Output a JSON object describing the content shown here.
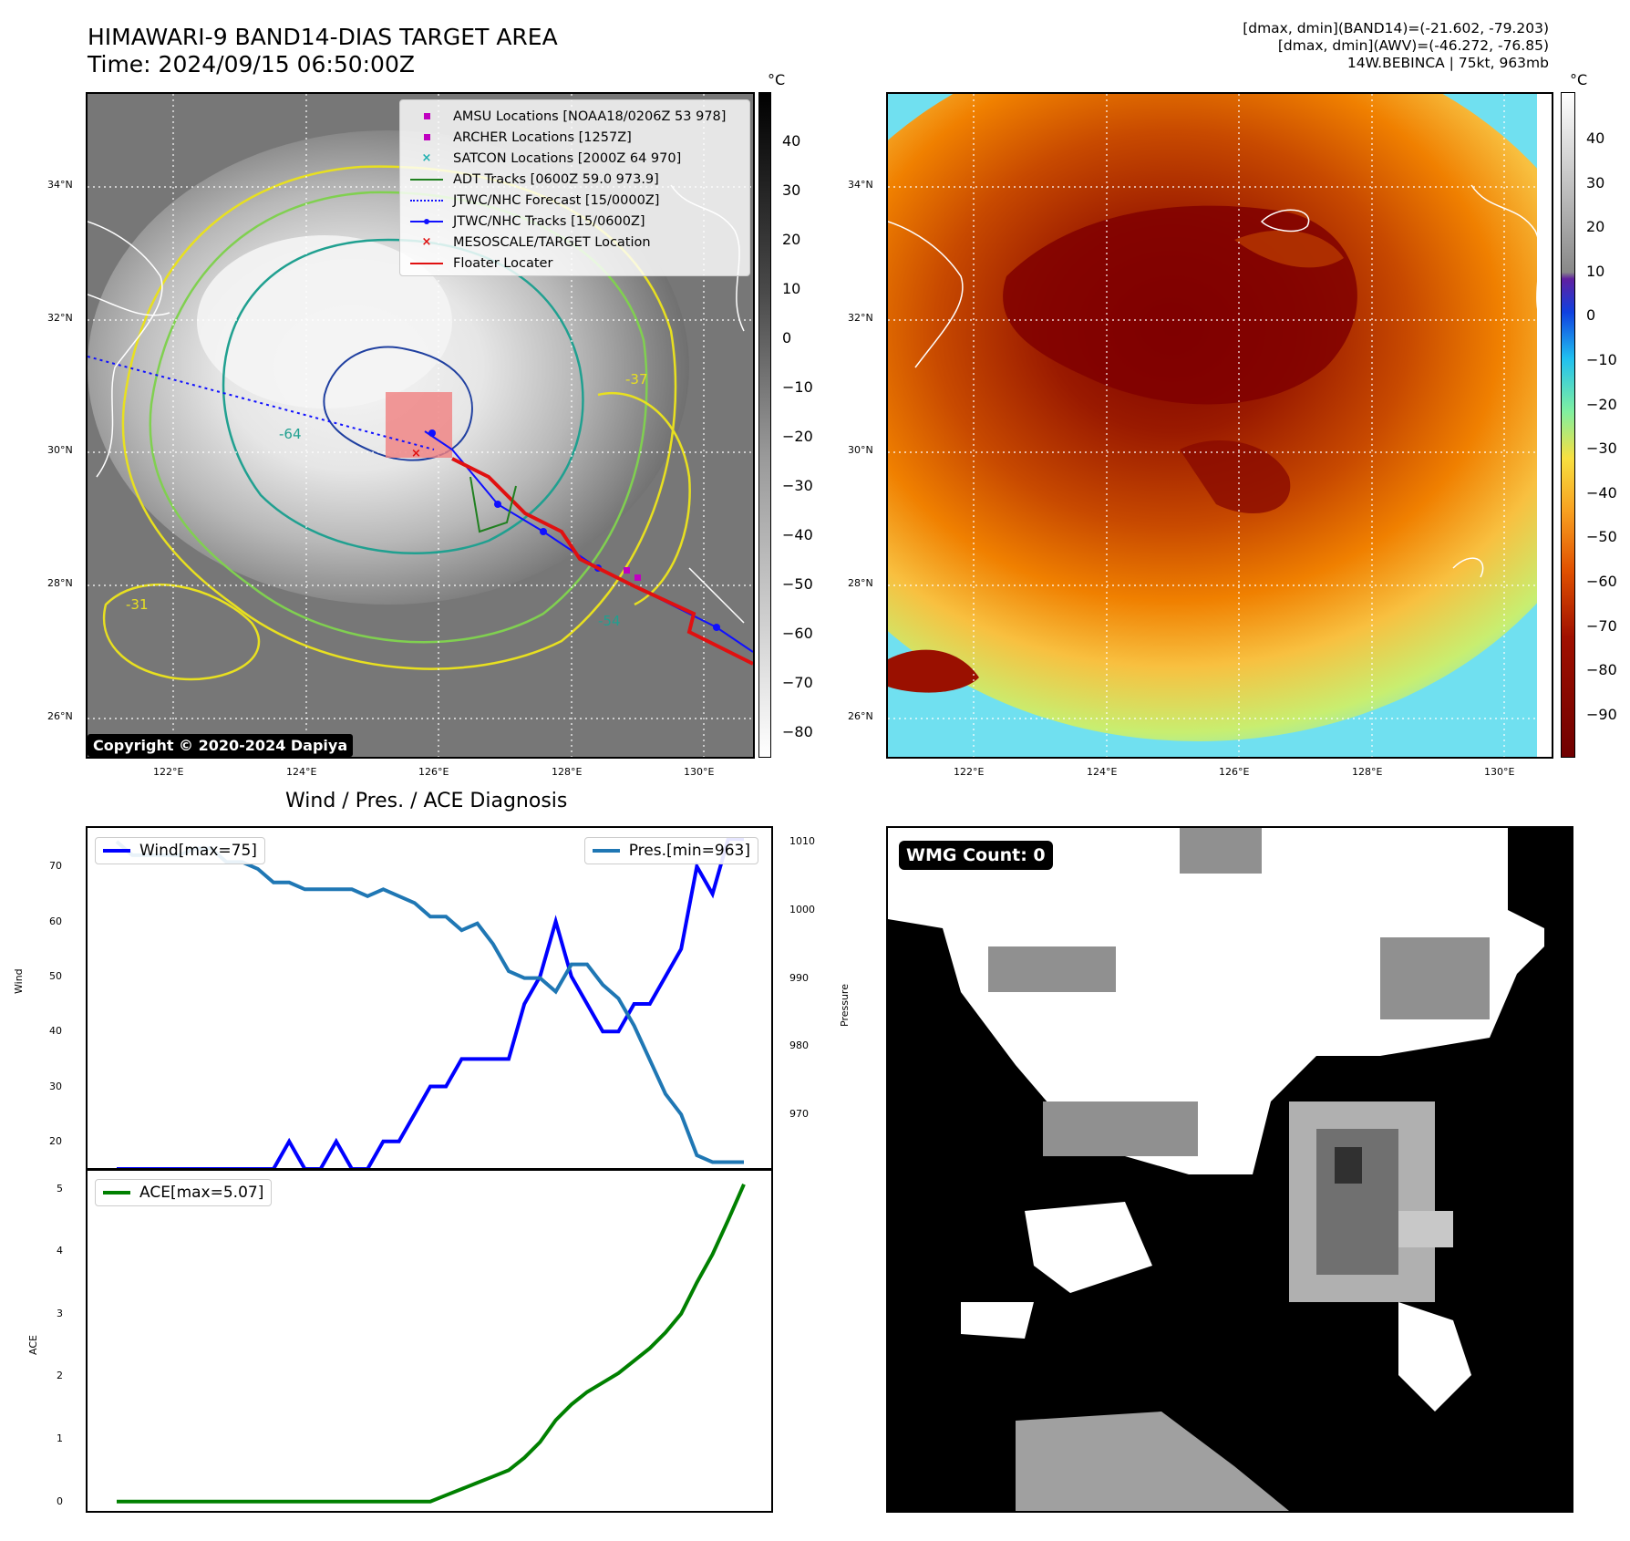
{
  "header": {
    "title": "HIMAWARI-9 BAND14-DIAS TARGET AREA",
    "time": "Time: 2024/09/15 06:50:00Z",
    "dmax_band14": "[dmax, dmin](BAND14)=(-21.602, -79.203)",
    "dmax_awv": "[dmax, dmin](AWV)=(-46.272, -76.85)",
    "storm": "14W.BEBINCA | 75kt, 963mb"
  },
  "map": {
    "lat_labels": [
      "34°N",
      "32°N",
      "30°N",
      "28°N",
      "26°N"
    ],
    "lon_labels": [
      "122°E",
      "124°E",
      "126°E",
      "128°E",
      "130°E"
    ],
    "copyright": "Copyright © 2020-2024 Dapiya",
    "contour_labels": [
      "-64",
      "-54",
      "-37",
      "-31"
    ],
    "legend": [
      {
        "label": "AMSU Locations [NOAA18/0206Z 53 978]",
        "color": "#c000c0"
      },
      {
        "label": "ARCHER Locations [1257Z]",
        "color": "#c000c0"
      },
      {
        "label": "SATCON Locations [2000Z 64 970]",
        "color": "#20b0b0"
      },
      {
        "label": "ADT Tracks [0600Z 59.0 973.9]",
        "color": "#208020"
      },
      {
        "label": "JTWC/NHC Forecast [15/0000Z]",
        "color": "#1010ff"
      },
      {
        "label": "JTWC/NHC Tracks [15/0600Z]",
        "color": "#1010ff"
      },
      {
        "label": "MESOSCALE/TARGET Location",
        "color": "#e01010"
      },
      {
        "label": "Floater Locater",
        "color": "#e01010"
      }
    ]
  },
  "colorbar_gray": {
    "unit": "°C",
    "ticks": [
      "40",
      "30",
      "20",
      "10",
      "0",
      "−10",
      "−20",
      "−30",
      "−40",
      "−50",
      "−60",
      "−70",
      "−80"
    ]
  },
  "colorbar_color": {
    "unit": "°C",
    "ticks": [
      "40",
      "30",
      "20",
      "10",
      "0",
      "−10",
      "−20",
      "−30",
      "−40",
      "−50",
      "−60",
      "−70",
      "−80",
      "−90"
    ]
  },
  "diag": {
    "title": "Wind / Pres. / ACE Diagnosis",
    "wind_ylabel": "Wind",
    "pres_ylabel": "Pressure",
    "ace_ylabel": "ACE",
    "wind_legend": "Wind[max=75]",
    "pres_legend": "Pres.[min=963]",
    "ace_legend": "ACE[max=5.07]",
    "wind_ticks": [
      "70",
      "60",
      "50",
      "40",
      "30",
      "20"
    ],
    "pres_ticks": [
      "1010",
      "1000",
      "990",
      "980",
      "970"
    ],
    "ace_ticks": [
      "5",
      "4",
      "3",
      "2",
      "1",
      "0"
    ]
  },
  "wmg": {
    "label": "WMG Count: 0"
  },
  "chart_data": [
    {
      "type": "line",
      "title": "Wind / Pres. / ACE Diagnosis",
      "ylabel": "Wind",
      "ylim": [
        15,
        77
      ],
      "series": [
        {
          "name": "Wind[max=75]",
          "color": "#0000ff",
          "values": [
            15,
            15,
            15,
            15,
            15,
            15,
            15,
            15,
            15,
            15,
            15,
            20,
            15,
            15,
            20,
            15,
            15,
            20,
            20,
            25,
            30,
            30,
            35,
            35,
            35,
            35,
            45,
            50,
            60,
            50,
            45,
            40,
            40,
            45,
            45,
            50,
            55,
            70,
            65,
            75,
            75
          ]
        }
      ]
    },
    {
      "type": "line",
      "ylabel": "Pressure",
      "ylim": [
        962,
        1012
      ],
      "series": [
        {
          "name": "Pres.[min=963]",
          "color": "#1f77b4",
          "values": [
            1010,
            1008,
            1008,
            1008,
            1008,
            1009,
            1009,
            1007,
            1007,
            1006,
            1004,
            1004,
            1003,
            1003,
            1003,
            1003,
            1002,
            1003,
            1002,
            1001,
            999,
            999,
            997,
            998,
            995,
            991,
            990,
            990,
            988,
            992,
            992,
            989,
            987,
            983,
            978,
            973,
            970,
            964,
            963,
            963,
            963
          ]
        }
      ]
    },
    {
      "type": "line",
      "ylabel": "ACE",
      "ylim": [
        -0.15,
        5.3
      ],
      "series": [
        {
          "name": "ACE[max=5.07]",
          "color": "#008000",
          "values": [
            0,
            0,
            0,
            0,
            0,
            0,
            0,
            0,
            0,
            0,
            0,
            0,
            0,
            0,
            0,
            0,
            0,
            0,
            0,
            0,
            0,
            0.1,
            0.2,
            0.3,
            0.4,
            0.5,
            0.7,
            0.95,
            1.3,
            1.55,
            1.75,
            1.9,
            2.05,
            2.25,
            2.45,
            2.7,
            3.0,
            3.5,
            3.95,
            4.5,
            5.07
          ]
        }
      ]
    }
  ]
}
